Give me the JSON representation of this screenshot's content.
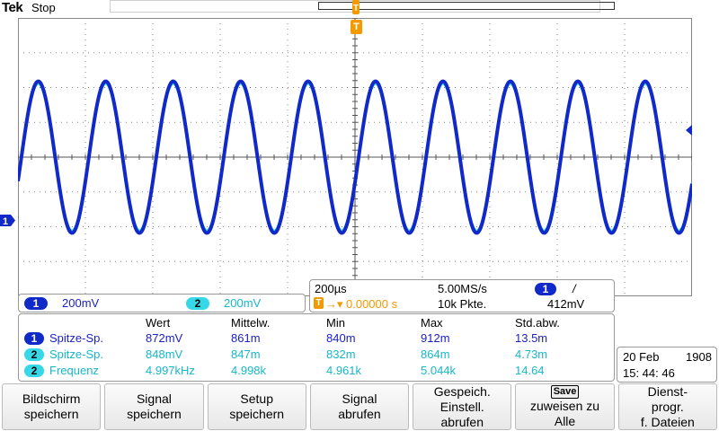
{
  "header": {
    "brand": "Tek",
    "state": "Stop"
  },
  "markers": {
    "trigger_pos": "T",
    "ch1": "1"
  },
  "colors": {
    "ch1": "#1029c8",
    "ch2": "#36d8e8",
    "trigger": "#f29a00",
    "grid": "#8a8a8a"
  },
  "vertical": {
    "ch1_chip": "1",
    "ch1_scale": "200mV",
    "ch2_chip": "2",
    "ch2_scale": "200mV"
  },
  "timebase": {
    "time_div": "200µs",
    "sample_rate": "5.00MS/s",
    "trig_chip": "1",
    "trig_slope": "/",
    "trig_icon": "T",
    "trig_delay": "0.00000 s",
    "record_length": "10k Pkte.",
    "trig_level": "412mV"
  },
  "measurements": {
    "headers": [
      "Wert",
      "Mittelw.",
      "Min",
      "Max",
      "Std.abw."
    ],
    "rows": [
      {
        "channel": "1",
        "name": "Spitze-Sp.",
        "values": [
          "872mV",
          "861m",
          "840m",
          "912m",
          "13.5m"
        ]
      },
      {
        "channel": "2",
        "name": "Spitze-Sp.",
        "values": [
          "848mV",
          "847m",
          "832m",
          "864m",
          "4.73m"
        ]
      },
      {
        "channel": "2",
        "name": "Frequenz",
        "values": [
          "4.997kHz",
          "4.998k",
          "4.961k",
          "5.044k",
          "14.64"
        ]
      }
    ]
  },
  "clock": {
    "date": "20 Feb",
    "year": "1908",
    "time": "15: 44: 46"
  },
  "menu": [
    {
      "line1": "Bildschirm",
      "line2": "speichern"
    },
    {
      "line1": "Signal",
      "line2": "speichern"
    },
    {
      "line1": "Setup",
      "line2": "speichern"
    },
    {
      "line1": "Signal",
      "line2": "abrufen"
    },
    {
      "line1": "Gespeich.",
      "line2": "Einstell.",
      "line3": "abrufen"
    },
    {
      "badge": "Save",
      "line1": "zuweisen zu",
      "line2": "Alle"
    },
    {
      "line1": "Dienst-",
      "line2": "progr.",
      "line3": "f. Dateien"
    }
  ],
  "chart_data": {
    "type": "line",
    "title": "",
    "xlabel": "",
    "ylabel": "",
    "x_divisions": 10,
    "y_divisions": 8,
    "x_per_div_us": 200,
    "x_range_us": [
      -1000,
      1000
    ],
    "y_per_div_mV": 200,
    "series": [
      {
        "name": "1",
        "frequency_kHz": 4.997,
        "peak_to_peak_mV": 872,
        "offset_div": 0
      },
      {
        "name": "2",
        "frequency_kHz": 4.997,
        "peak_to_peak_mV": 848,
        "offset_div": 0
      }
    ]
  }
}
